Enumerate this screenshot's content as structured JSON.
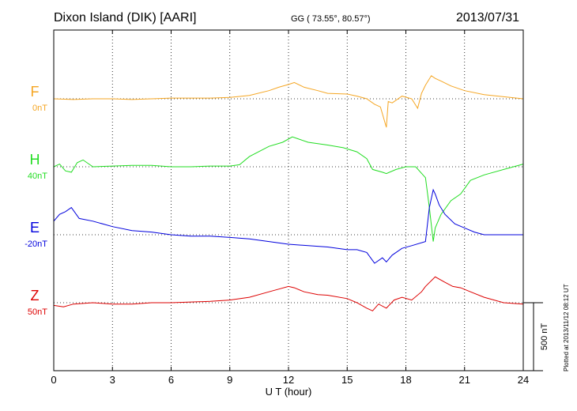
{
  "header": {
    "station": "Dixon Island (DIK)  [AARI]",
    "coords": "GG ( 73.55°,  80.57°)",
    "date": "2013/07/31"
  },
  "footer": {
    "plotted": "Plotted at 2013/11/12 08:12 UT"
  },
  "scale_bar": {
    "label": "500 nT",
    "value_nT": 500
  },
  "chart_data": {
    "type": "line",
    "xlabel": "U T (hour)",
    "xlim": [
      0,
      24
    ],
    "xticks": [
      0,
      3,
      6,
      9,
      12,
      15,
      18,
      21,
      24
    ],
    "grid": true,
    "series": [
      {
        "name": "F",
        "baseline_label": "0nT",
        "baseline_nT": 0,
        "color": "#f5a623",
        "x": [
          0,
          1,
          2,
          3,
          4,
          5,
          6,
          7,
          8,
          9,
          10,
          11,
          11.5,
          12,
          12.3,
          12.8,
          13.5,
          14,
          15,
          15.5,
          16,
          16.4,
          16.7,
          17,
          17.1,
          17.3,
          17.8,
          18.3,
          18.6,
          18.8,
          19,
          19.3,
          19.5,
          19.8,
          20.3,
          21,
          22,
          23,
          24
        ],
        "values": [
          0,
          -5,
          0,
          0,
          -5,
          0,
          5,
          5,
          5,
          10,
          25,
          60,
          85,
          105,
          120,
          85,
          60,
          40,
          35,
          20,
          0,
          -40,
          -60,
          -210,
          -20,
          -30,
          20,
          0,
          -70,
          40,
          100,
          170,
          150,
          130,
          95,
          60,
          30,
          15,
          0
        ]
      },
      {
        "name": "H",
        "baseline_label": "40nT",
        "baseline_nT": 40,
        "color": "#22dd22",
        "x": [
          0,
          0.3,
          0.6,
          0.9,
          1.2,
          1.5,
          2,
          3,
          4,
          5,
          6,
          7,
          8,
          9,
          9.5,
          10,
          11,
          11.7,
          12.2,
          13,
          14,
          14.8,
          15.5,
          16,
          16.3,
          16.8,
          17,
          17.5,
          18,
          18.5,
          19,
          19.2,
          19.4,
          19.5,
          19.8,
          20.3,
          20.8,
          21.3,
          22,
          23,
          24
        ],
        "values": [
          0,
          20,
          -30,
          -40,
          30,
          50,
          0,
          5,
          10,
          10,
          0,
          0,
          5,
          5,
          15,
          75,
          150,
          180,
          220,
          180,
          160,
          140,
          110,
          60,
          -20,
          -40,
          -50,
          -20,
          0,
          0,
          -80,
          -300,
          -550,
          -450,
          -350,
          -250,
          -200,
          -100,
          -60,
          -20,
          20
        ]
      },
      {
        "name": "E",
        "baseline_label": "-20nT",
        "baseline_nT": -20,
        "color": "#0000dd",
        "x": [
          0,
          0.3,
          0.6,
          0.9,
          1.3,
          2,
          3,
          4,
          5,
          6,
          7,
          8,
          9,
          10,
          11,
          12,
          13,
          14,
          15,
          15.5,
          16,
          16.4,
          16.8,
          17,
          17.3,
          17.8,
          18.3,
          19,
          19.2,
          19.4,
          19.5,
          19.7,
          20,
          20.5,
          21,
          21.5,
          22,
          23,
          24
        ],
        "values": [
          100,
          150,
          170,
          200,
          120,
          100,
          60,
          30,
          20,
          0,
          -10,
          -10,
          -20,
          -30,
          -50,
          -70,
          -80,
          -90,
          -110,
          -110,
          -130,
          -210,
          -170,
          -200,
          -150,
          -100,
          -80,
          -50,
          200,
          330,
          300,
          220,
          150,
          80,
          50,
          20,
          0,
          0,
          0
        ]
      },
      {
        "name": "Z",
        "baseline_label": "50nT",
        "baseline_nT": 50,
        "color": "#dd0000",
        "x": [
          0,
          0.5,
          1,
          2,
          3,
          4,
          5,
          6,
          7,
          8,
          9,
          10,
          11,
          11.5,
          12,
          12.3,
          12.8,
          13.5,
          14,
          15,
          15.5,
          16,
          16.3,
          16.6,
          17,
          17.4,
          17.8,
          18.3,
          18.8,
          19,
          19.5,
          20,
          20.4,
          20.8,
          21.3,
          22,
          23,
          24
        ],
        "values": [
          -20,
          -30,
          -10,
          0,
          -10,
          -10,
          0,
          0,
          5,
          10,
          20,
          40,
          80,
          100,
          120,
          110,
          80,
          60,
          55,
          30,
          0,
          -40,
          -60,
          -10,
          -40,
          20,
          40,
          20,
          80,
          120,
          190,
          150,
          120,
          110,
          80,
          40,
          0,
          -10
        ]
      }
    ]
  }
}
